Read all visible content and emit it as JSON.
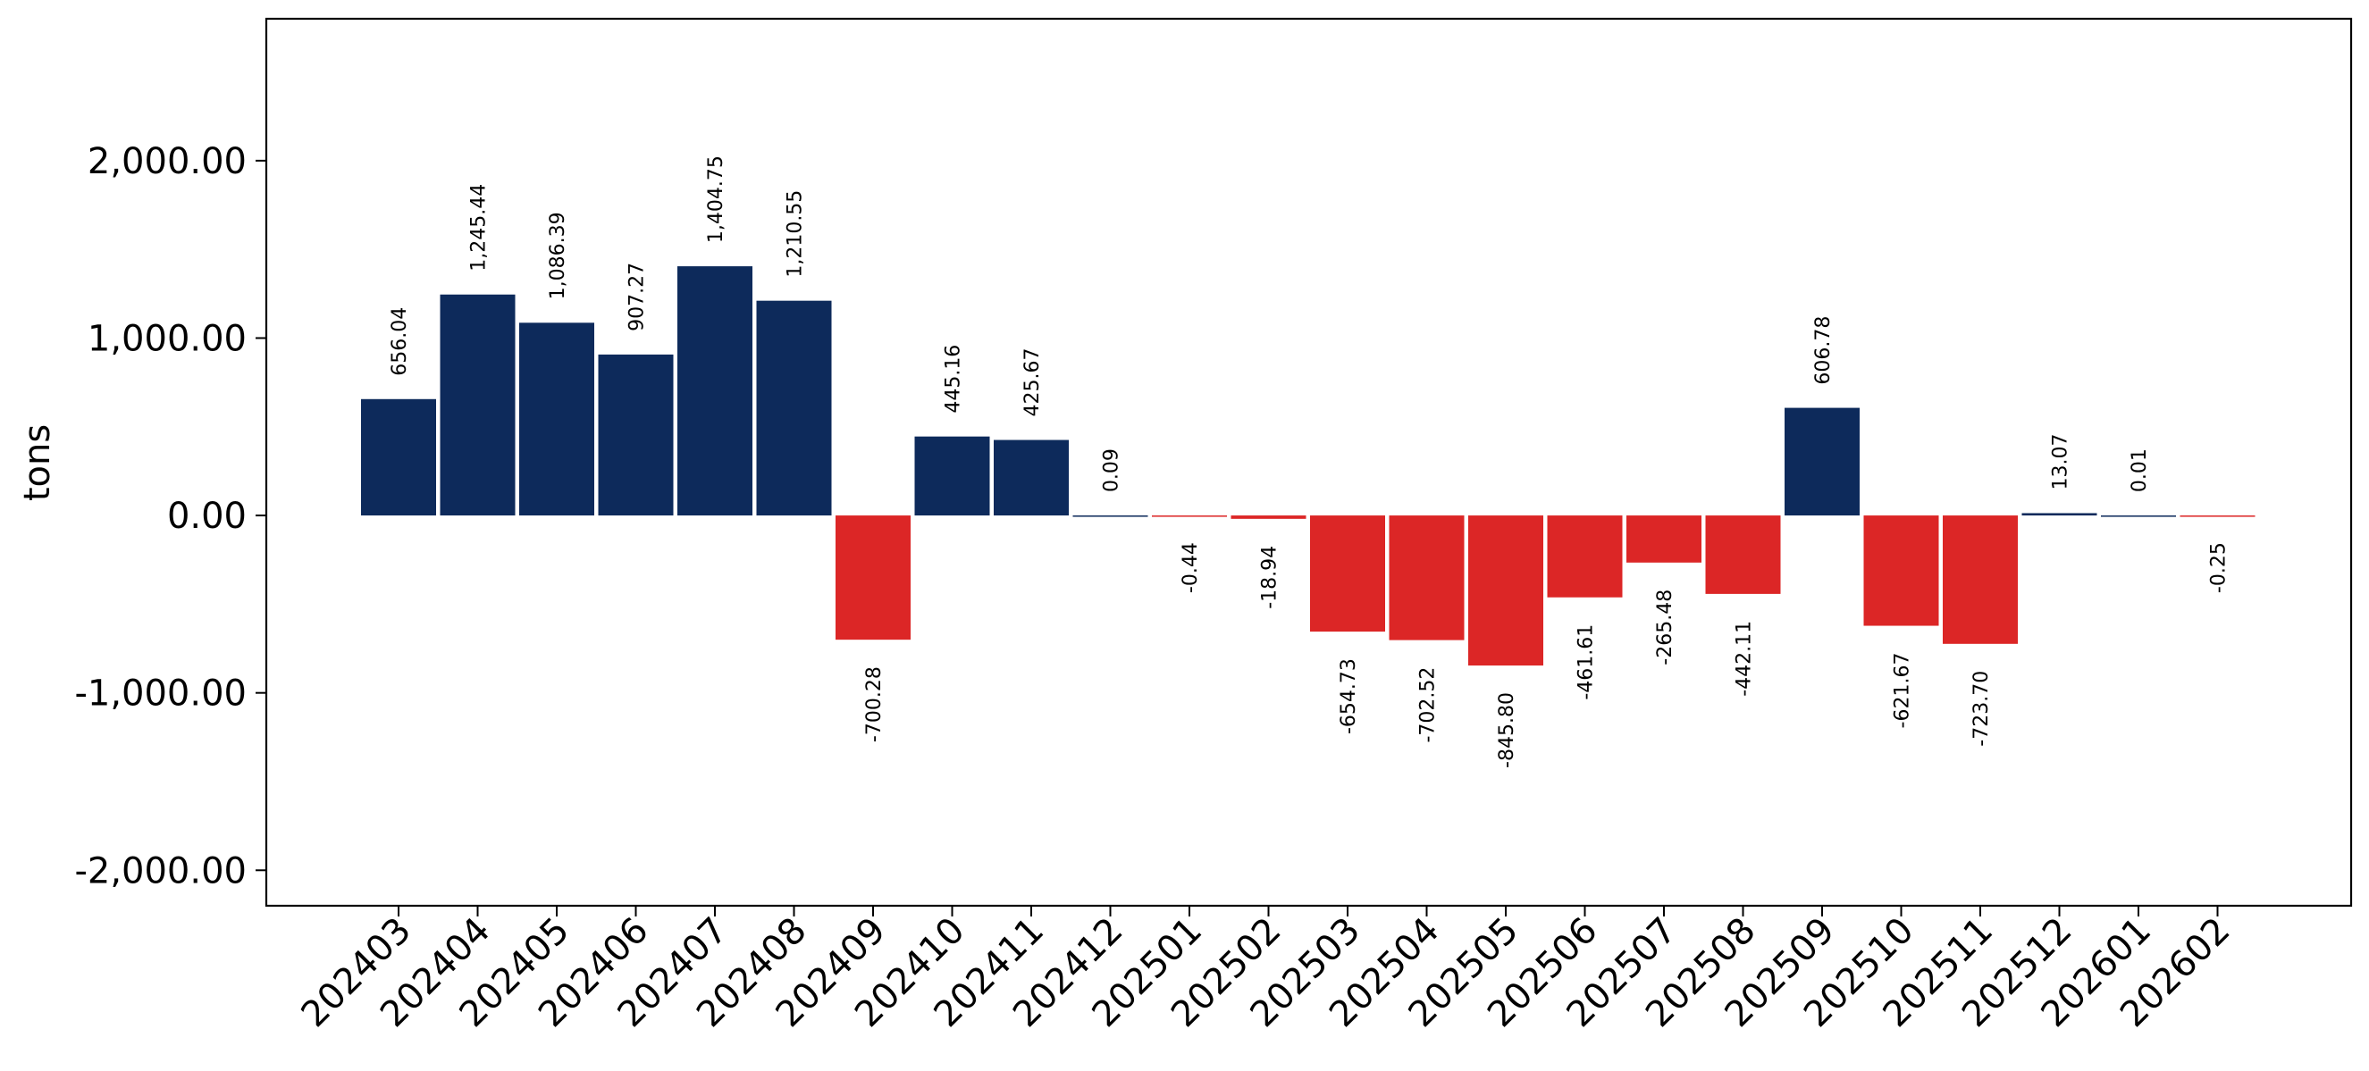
{
  "chart_data": {
    "type": "bar",
    "title": "",
    "xlabel": "",
    "ylabel": "tons",
    "ylim": [
      -2200,
      2800
    ],
    "yticks": [
      -2000,
      -1000,
      0,
      1000,
      2000
    ],
    "ytick_labels": [
      "-2,000.00",
      "-1,000.00",
      "0.00",
      "1,000.00",
      "2,000.00"
    ],
    "grid": false,
    "legend": "none",
    "positive_color": "#0d2a5b",
    "negative_color": "#dc2626",
    "categories": [
      "202403",
      "202404",
      "202405",
      "202406",
      "202407",
      "202408",
      "202409",
      "202410",
      "202411",
      "202412",
      "202501",
      "202502",
      "202503",
      "202504",
      "202505",
      "202506",
      "202507",
      "202508",
      "202509",
      "202510",
      "202511",
      "202512",
      "202601",
      "202602"
    ],
    "values": [
      656.04,
      1245.44,
      1086.39,
      907.27,
      1404.75,
      1210.55,
      -700.28,
      445.16,
      425.67,
      0.09,
      -0.44,
      -18.94,
      -654.73,
      -702.52,
      -845.8,
      -461.61,
      -265.48,
      -442.11,
      606.78,
      -621.67,
      -723.7,
      13.07,
      0.01,
      -0.25
    ],
    "value_labels": [
      "656.04",
      "1,245.44",
      "1,086.39",
      "907.27",
      "1,404.75",
      "1,210.55",
      "-700.28",
      "445.16",
      "425.67",
      "0.09",
      "-0.44",
      "-18.94",
      "-654.73",
      "-702.52",
      "-845.80",
      "-461.61",
      "-265.48",
      "-442.11",
      "606.78",
      "-621.67",
      "-723.70",
      "13.07",
      "0.01",
      "-0.25"
    ]
  }
}
